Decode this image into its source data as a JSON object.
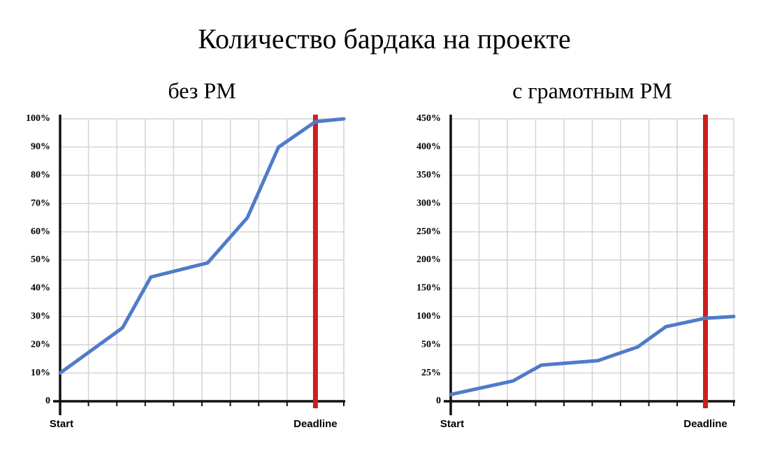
{
  "title": "Количество бардака на проекте",
  "chart_data": [
    {
      "type": "line",
      "title": "без PM",
      "x": [
        0,
        2.2,
        3.2,
        5.2,
        6.6,
        7.7,
        9,
        10
      ],
      "values": [
        10,
        26,
        44,
        49,
        65,
        90,
        99,
        100
      ],
      "color": "#4f7bc9",
      "xlim": [
        0,
        10
      ],
      "xticks": [
        {
          "value": 0,
          "label": "Start"
        },
        {
          "value": 1,
          "label": null
        },
        {
          "value": 2,
          "label": null
        },
        {
          "value": 3,
          "label": null
        },
        {
          "value": 4,
          "label": null
        },
        {
          "value": 5,
          "label": null
        },
        {
          "value": 6,
          "label": null
        },
        {
          "value": 7,
          "label": null
        },
        {
          "value": 8,
          "label": null
        },
        {
          "value": 9,
          "label": "Deadline"
        },
        {
          "value": 10,
          "label": null
        }
      ],
      "ylim": [
        0,
        100
      ],
      "yscale": "linear",
      "yticks": [
        0,
        {
          "value": 10,
          "label": "10%"
        },
        {
          "value": 20,
          "label": "20%"
        },
        {
          "value": 30,
          "label": "30%"
        },
        {
          "value": 40,
          "label": "40%"
        },
        {
          "value": 50,
          "label": "50%"
        },
        {
          "value": 60,
          "label": "60%"
        },
        {
          "value": 70,
          "label": "70%"
        },
        {
          "value": 80,
          "label": "80%"
        },
        {
          "value": 90,
          "label": "90%"
        },
        {
          "value": 100,
          "label": "100%"
        }
      ],
      "grid": true,
      "marker_x": 9,
      "marker_color": "#cc1f1f"
    },
    {
      "type": "line",
      "title": "с грамотным PM",
      "x": [
        0,
        2.2,
        3.2,
        5.2,
        6.6,
        7.6,
        9,
        10
      ],
      "values": [
        6,
        18,
        32,
        36,
        48,
        82,
        97,
        100
      ],
      "color": "#4f7bc9",
      "xlim": [
        0,
        10
      ],
      "xticks": [
        {
          "value": 0,
          "label": "Start"
        },
        {
          "value": 1,
          "label": null
        },
        {
          "value": 2,
          "label": null
        },
        {
          "value": 3,
          "label": null
        },
        {
          "value": 4,
          "label": null
        },
        {
          "value": 5,
          "label": null
        },
        {
          "value": 6,
          "label": null
        },
        {
          "value": 7,
          "label": null
        },
        {
          "value": 8,
          "label": null
        },
        {
          "value": 9,
          "label": "Deadline"
        },
        {
          "value": 10,
          "label": null
        }
      ],
      "ylim": [
        0,
        450
      ],
      "yscale": "even-ticks",
      "yticks": [
        0,
        {
          "value": 25,
          "label": "25%"
        },
        {
          "value": 50,
          "label": "50%"
        },
        {
          "value": 100,
          "label": "100%"
        },
        {
          "value": 150,
          "label": "150%"
        },
        {
          "value": 200,
          "label": "200%"
        },
        {
          "value": 250,
          "label": "250%"
        },
        {
          "value": 300,
          "label": "300%"
        },
        {
          "value": 350,
          "label": "350%"
        },
        {
          "value": 400,
          "label": "400%"
        },
        {
          "value": 450,
          "label": "450%"
        }
      ],
      "grid": true,
      "marker_x": 9,
      "marker_color": "#cc1f1f"
    }
  ]
}
